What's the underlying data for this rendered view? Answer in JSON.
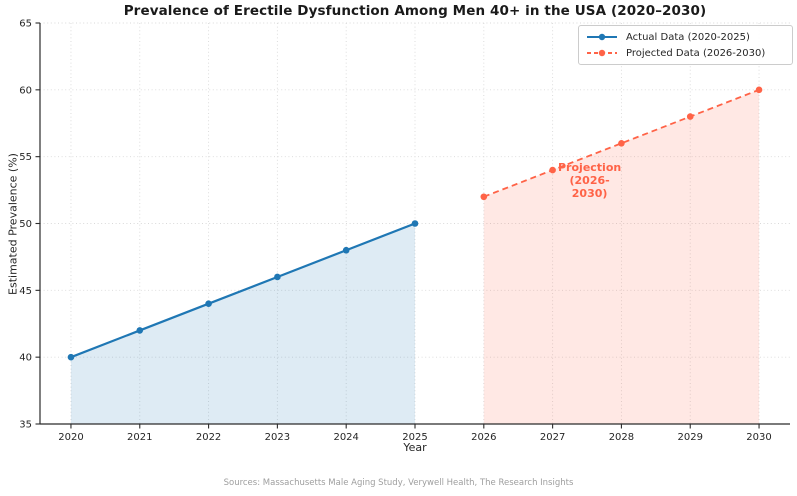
{
  "footer": "Sources: Massachusetts Male Aging Study, Verywell Health, The Research Insights",
  "chart_data": {
    "type": "line",
    "title": "Prevalence of Erectile Dysfunction Among Men 40+ in the USA (2020–2030)",
    "xlabel": "Year",
    "ylabel": "Estimated Prevalence (%)",
    "xlim": [
      2019.55,
      2030.45
    ],
    "ylim": [
      35,
      65
    ],
    "xticks": [
      2020,
      2021,
      2022,
      2023,
      2024,
      2025,
      2026,
      2027,
      2028,
      2029,
      2030
    ],
    "yticks": [
      35,
      40,
      45,
      50,
      55,
      60,
      65
    ],
    "grid": true,
    "grid_style": "dotted",
    "legend_position": "upper right",
    "axis_color": "#2b2b2b",
    "grid_color": "#d9d9d9",
    "series": [
      {
        "key": "actual",
        "name": "Actual Data (2020-2025)",
        "x": [
          2020,
          2021,
          2022,
          2023,
          2024,
          2025
        ],
        "values": [
          40,
          42,
          44,
          46,
          48,
          50
        ],
        "color": "#1f77b4",
        "line_style": "solid",
        "fill_to_baseline": true,
        "fill_opacity": 0.15
      },
      {
        "key": "projected",
        "name": "Projected Data (2026-2030)",
        "x": [
          2026,
          2027,
          2028,
          2029,
          2030
        ],
        "values": [
          52,
          54,
          56,
          58,
          60
        ],
        "color": "#ff6347",
        "line_style": "dashed",
        "fill_to_baseline": true,
        "fill_opacity": 0.15
      }
    ],
    "annotation": {
      "lines": [
        "Projection",
        "(2026-2030)"
      ],
      "color": "#ff6347",
      "anchor_x": 2027,
      "anchor_y": 54
    }
  }
}
